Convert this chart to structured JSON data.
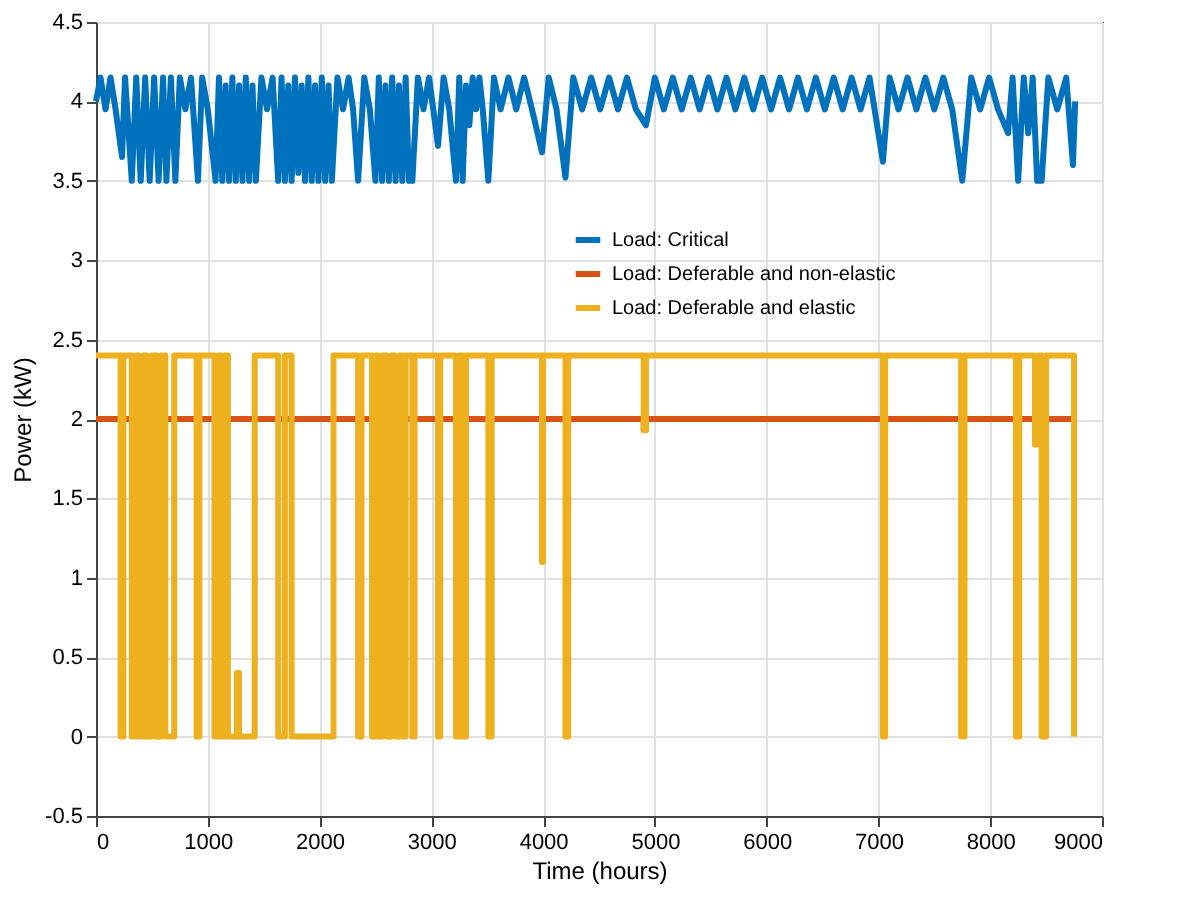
{
  "chart_data": {
    "type": "line",
    "xlabel": "Time (hours)",
    "ylabel": "Power (kW)",
    "xlim": [
      0,
      9000
    ],
    "xticks": [
      0,
      1000,
      2000,
      3000,
      4000,
      5000,
      6000,
      7000,
      8000,
      9000
    ],
    "ylim": [
      -0.5,
      4.5
    ],
    "yticks": [
      -0.5,
      0,
      0.5,
      1,
      1.5,
      2,
      2.5,
      3,
      3.5,
      4,
      4.5
    ],
    "grid": true,
    "legend": "top right",
    "line_style": "solid",
    "marker": "none",
    "series": [
      {
        "name": "Load: Critical",
        "color": "#0072bd",
        "x": [
          0,
          40,
          85,
          130,
          175,
          233,
          260,
          320,
          360,
          400,
          440,
          480,
          520,
          560,
          600,
          630,
          670,
          710,
          750,
          800,
          850,
          912,
          950,
          1000,
          1070,
          1100,
          1130,
          1160,
          1190,
          1220,
          1250,
          1280,
          1310,
          1340,
          1370,
          1400,
          1430,
          1480,
          1530,
          1580,
          1630,
          1660,
          1690,
          1720,
          1750,
          1780,
          1810,
          1840,
          1870,
          1900,
          1930,
          1960,
          1990,
          2020,
          2050,
          2080,
          2110,
          2160,
          2210,
          2260,
          2300,
          2345,
          2400,
          2450,
          2500,
          2530,
          2560,
          2590,
          2620,
          2650,
          2680,
          2710,
          2740,
          2770,
          2800,
          2830,
          2880,
          2930,
          2980,
          3060,
          3110,
          3160,
          3220,
          3250,
          3280,
          3310,
          3340,
          3370,
          3400,
          3430,
          3460,
          3510,
          3560,
          3620,
          3690,
          3760,
          3830,
          3900,
          3990,
          4050,
          4120,
          4200,
          4270,
          4350,
          4430,
          4510,
          4590,
          4670,
          4750,
          4830,
          4920,
          5000,
          5080,
          5160,
          5240,
          5320,
          5400,
          5480,
          5560,
          5640,
          5720,
          5800,
          5880,
          5960,
          6040,
          6120,
          6200,
          6280,
          6360,
          6440,
          6520,
          6600,
          6680,
          6760,
          6840,
          6920,
          7040,
          7100,
          7180,
          7260,
          7340,
          7420,
          7500,
          7580,
          7660,
          7750,
          7830,
          7910,
          7990,
          8070,
          8160,
          8200,
          8250,
          8300,
          8340,
          8380,
          8420,
          8460,
          8520,
          8600,
          8680,
          8740,
          8760
        ],
        "values": [
          4.0,
          4.15,
          3.95,
          4.15,
          3.95,
          3.65,
          4.15,
          3.5,
          4.15,
          3.5,
          4.15,
          3.5,
          4.15,
          3.5,
          4.15,
          3.5,
          4.15,
          3.5,
          4.15,
          3.95,
          4.15,
          3.5,
          4.15,
          3.95,
          3.5,
          4.15,
          3.5,
          4.1,
          3.5,
          4.15,
          3.5,
          4.1,
          3.5,
          4.15,
          3.5,
          4.1,
          3.5,
          4.15,
          3.95,
          4.15,
          3.5,
          4.15,
          3.5,
          4.1,
          3.5,
          4.15,
          3.55,
          4.1,
          3.5,
          4.15,
          3.5,
          4.1,
          3.5,
          4.15,
          3.5,
          4.1,
          3.5,
          4.15,
          3.95,
          4.15,
          3.95,
          3.5,
          4.15,
          3.95,
          3.5,
          4.15,
          3.5,
          4.1,
          3.5,
          4.15,
          3.5,
          4.1,
          3.5,
          4.15,
          3.5,
          3.5,
          4.15,
          3.95,
          4.15,
          3.72,
          4.15,
          3.95,
          3.5,
          4.15,
          3.5,
          4.1,
          3.85,
          4.15,
          3.95,
          4.15,
          3.95,
          3.5,
          4.15,
          3.95,
          4.15,
          3.95,
          4.15,
          3.95,
          3.68,
          4.15,
          3.95,
          3.52,
          4.15,
          3.95,
          4.15,
          3.95,
          4.15,
          3.95,
          4.15,
          3.95,
          3.85,
          4.15,
          3.95,
          4.15,
          3.95,
          4.15,
          3.95,
          4.15,
          3.95,
          4.15,
          3.95,
          4.15,
          3.95,
          4.15,
          3.95,
          4.15,
          3.95,
          4.15,
          3.95,
          4.15,
          3.95,
          4.15,
          3.95,
          4.15,
          3.95,
          4.15,
          3.62,
          4.15,
          3.95,
          4.15,
          3.95,
          4.15,
          3.95,
          4.15,
          3.95,
          3.5,
          4.15,
          3.95,
          4.15,
          3.95,
          3.8,
          4.15,
          3.5,
          4.15,
          3.8,
          4.15,
          3.5,
          3.5,
          4.15,
          3.95,
          4.15,
          3.6,
          4.0
        ]
      },
      {
        "name": "Load: Deferable and non-elastic",
        "color": "#d95319",
        "x": [
          0,
          4900,
          4900,
          4920,
          4920,
          8760
        ],
        "values": [
          2,
          2,
          1.93,
          1.93,
          2,
          2
        ]
      },
      {
        "name": "Load: Deferable and elastic",
        "color": "#edb120",
        "x": [
          0,
          220,
          220,
          245,
          245,
          320,
          320,
          350,
          350,
          380,
          380,
          420,
          420,
          450,
          450,
          500,
          500,
          540,
          540,
          580,
          580,
          620,
          620,
          700,
          700,
          900,
          900,
          925,
          925,
          1060,
          1060,
          1090,
          1090,
          1120,
          1120,
          1150,
          1150,
          1180,
          1180,
          1260,
          1260,
          1280,
          1280,
          1420,
          1420,
          1630,
          1630,
          1690,
          1690,
          1750,
          1750,
          2125,
          2125,
          2345,
          2345,
          2375,
          2375,
          2470,
          2470,
          2500,
          2500,
          2530,
          2530,
          2560,
          2560,
          2600,
          2600,
          2640,
          2640,
          2680,
          2680,
          2710,
          2710,
          2740,
          2740,
          2770,
          2770,
          2830,
          2830,
          2850,
          2850,
          3060,
          3060,
          3080,
          3080,
          3220,
          3220,
          3250,
          3250,
          3280,
          3280,
          3310,
          3310,
          3510,
          3510,
          3540,
          3540,
          3990,
          3990,
          4000,
          4000,
          4200,
          4200,
          4225,
          4225,
          4900,
          4900,
          4920,
          4920,
          7040,
          7040,
          7060,
          7060,
          7740,
          7740,
          7770,
          7770,
          8230,
          8230,
          8260,
          8260,
          8400,
          8400,
          8420,
          8420,
          8460,
          8460,
          8500,
          8500,
          8750,
          8750
        ],
        "values": [
          2.4,
          2.4,
          0,
          0,
          2.4,
          2.4,
          0,
          0,
          2.4,
          2.4,
          0,
          0,
          2.4,
          2.4,
          0,
          0,
          2.4,
          2.4,
          0,
          0,
          2.4,
          2.4,
          0,
          0,
          2.4,
          2.4,
          0,
          0,
          2.4,
          2.4,
          0,
          0,
          2.4,
          2.4,
          0,
          0,
          2.4,
          2.4,
          0,
          0,
          0.4,
          0.4,
          0,
          0,
          2.4,
          2.4,
          0,
          0,
          2.4,
          2.4,
          0,
          0,
          2.4,
          2.4,
          0,
          0,
          2.4,
          2.4,
          0,
          0,
          2.4,
          2.4,
          0,
          0,
          2.4,
          2.4,
          0,
          0,
          2.4,
          2.4,
          0,
          0,
          2.4,
          2.4,
          0,
          0,
          2.4,
          2.4,
          0,
          0,
          2.4,
          2.4,
          0,
          0,
          2.4,
          2.4,
          0,
          0,
          2.4,
          2.4,
          0,
          0,
          2.4,
          2.4,
          0,
          0,
          2.4,
          2.4,
          1.1,
          1.1,
          2.4,
          2.4,
          0,
          0,
          2.4,
          2.4,
          1.93,
          1.93,
          2.4,
          2.4,
          0,
          0,
          2.4,
          2.4,
          0,
          0,
          2.4,
          2.4,
          0,
          0,
          2.4,
          2.4,
          1.84,
          1.84,
          2.4,
          2.4,
          0,
          0,
          2.4,
          2.4,
          0
        ]
      }
    ]
  }
}
